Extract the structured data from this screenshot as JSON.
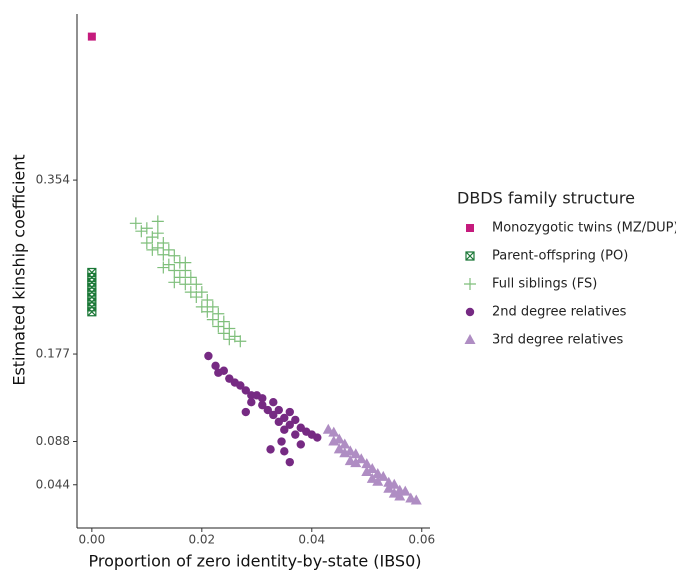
{
  "chart_data": {
    "type": "scatter",
    "x_label": "Proportion of zero identity-by-state (IBS0)",
    "y_label": "Estimated kinship coefficient",
    "legend_title": "DBDS family structure",
    "legend_position": "right",
    "grid": false,
    "xlim": [
      -0.0027,
      0.0615
    ],
    "ylim": [
      0,
      0.523
    ],
    "xticks": [
      {
        "value": 0,
        "label": "0.00"
      },
      0.02,
      0.04,
      0.06
    ],
    "yticks": [
      0.044,
      0.088,
      0.177,
      0.354
    ],
    "series": [
      {
        "name": "Monozygotic twins (MZ/DUP)",
        "color": "#c51b7d",
        "marker": "square",
        "x": [
          0.0
        ],
        "values": [
          0.5
        ]
      },
      {
        "name": "Parent-offspring (PO)",
        "color": "#1b7837",
        "marker": "square-x",
        "x": [
          0.0,
          0.0,
          0.0,
          0.0,
          0.0,
          0.0,
          0.0,
          0.0,
          0.0
        ],
        "values": [
          0.22,
          0.225,
          0.23,
          0.235,
          0.24,
          0.245,
          0.25,
          0.255,
          0.26
        ]
      },
      {
        "name": "Full siblings (FS)",
        "color": "#7fbf7b",
        "marker": "plus",
        "x": [
          0.008,
          0.009,
          0.01,
          0.01,
          0.011,
          0.012,
          0.012,
          0.013,
          0.013,
          0.014,
          0.014,
          0.015,
          0.015,
          0.016,
          0.016,
          0.017,
          0.017,
          0.018,
          0.018,
          0.019,
          0.019,
          0.02,
          0.02,
          0.021,
          0.021,
          0.022,
          0.022,
          0.023,
          0.023,
          0.024,
          0.024,
          0.025,
          0.025,
          0.026,
          0.027,
          0.011,
          0.013,
          0.015,
          0.012,
          0.017
        ],
        "values": [
          0.31,
          0.302,
          0.305,
          0.29,
          0.296,
          0.3,
          0.285,
          0.29,
          0.278,
          0.283,
          0.268,
          0.277,
          0.262,
          0.27,
          0.255,
          0.262,
          0.248,
          0.255,
          0.24,
          0.248,
          0.235,
          0.24,
          0.225,
          0.232,
          0.22,
          0.225,
          0.212,
          0.218,
          0.205,
          0.21,
          0.198,
          0.203,
          0.192,
          0.195,
          0.19,
          0.283,
          0.265,
          0.25,
          0.312,
          0.27
        ]
      },
      {
        "name": "2nd degree relatives",
        "color": "#762a83",
        "marker": "circle",
        "x": [
          0.0212,
          0.0225,
          0.023,
          0.024,
          0.025,
          0.026,
          0.027,
          0.028,
          0.029,
          0.029,
          0.03,
          0.031,
          0.031,
          0.032,
          0.033,
          0.033,
          0.034,
          0.034,
          0.035,
          0.035,
          0.036,
          0.036,
          0.037,
          0.037,
          0.038,
          0.039,
          0.04,
          0.041,
          0.0345,
          0.035,
          0.036,
          0.0325,
          0.038,
          0.028
        ],
        "values": [
          0.175,
          0.165,
          0.158,
          0.16,
          0.152,
          0.148,
          0.145,
          0.14,
          0.135,
          0.128,
          0.135,
          0.125,
          0.132,
          0.12,
          0.128,
          0.115,
          0.12,
          0.108,
          0.112,
          0.1,
          0.118,
          0.105,
          0.11,
          0.095,
          0.102,
          0.098,
          0.095,
          0.092,
          0.088,
          0.078,
          0.067,
          0.08,
          0.085,
          0.118
        ]
      },
      {
        "name": "3rd degree relatives",
        "color": "#af8dc3",
        "marker": "triangle",
        "x": [
          0.043,
          0.044,
          0.044,
          0.045,
          0.046,
          0.046,
          0.047,
          0.048,
          0.048,
          0.049,
          0.05,
          0.05,
          0.051,
          0.052,
          0.052,
          0.053,
          0.054,
          0.054,
          0.055,
          0.056,
          0.056,
          0.057,
          0.058,
          0.059,
          0.047,
          0.051,
          0.055,
          0.045
        ],
        "values": [
          0.1,
          0.097,
          0.088,
          0.09,
          0.085,
          0.076,
          0.078,
          0.075,
          0.066,
          0.07,
          0.065,
          0.057,
          0.06,
          0.055,
          0.047,
          0.052,
          0.046,
          0.04,
          0.044,
          0.038,
          0.032,
          0.037,
          0.03,
          0.028,
          0.068,
          0.05,
          0.035,
          0.08
        ]
      }
    ]
  }
}
